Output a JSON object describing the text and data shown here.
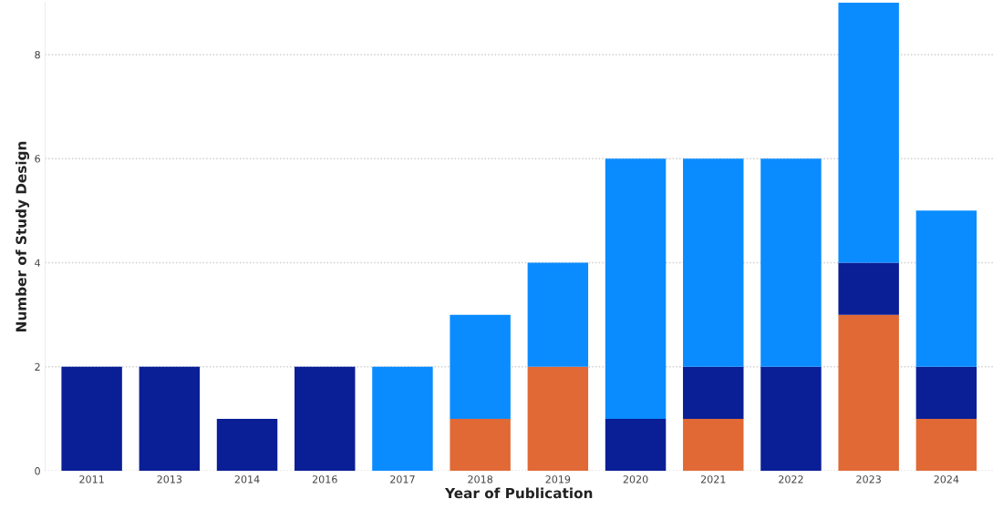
{
  "chart_data": {
    "type": "bar",
    "stacked": true,
    "xlabel": "Year of Publication",
    "ylabel": "Number of Study Design",
    "categories": [
      "2011",
      "2013",
      "2014",
      "2016",
      "2017",
      "2018",
      "2019",
      "2020",
      "2021",
      "2022",
      "2023",
      "2024"
    ],
    "series": [
      {
        "color": "#e06936",
        "values": [
          0,
          0,
          0,
          0,
          0,
          1,
          2,
          0,
          1,
          0,
          3,
          1
        ]
      },
      {
        "color": "#0a1e96",
        "values": [
          2,
          2,
          1,
          2,
          0,
          0,
          0,
          1,
          1,
          2,
          1,
          1
        ]
      },
      {
        "color": "#0a8cff",
        "values": [
          0,
          0,
          0,
          0,
          2,
          2,
          2,
          5,
          4,
          4,
          5,
          3
        ]
      }
    ],
    "ylim": [
      0,
      9
    ],
    "yticks": [
      0,
      2,
      4,
      6,
      8
    ],
    "grid": "y"
  }
}
